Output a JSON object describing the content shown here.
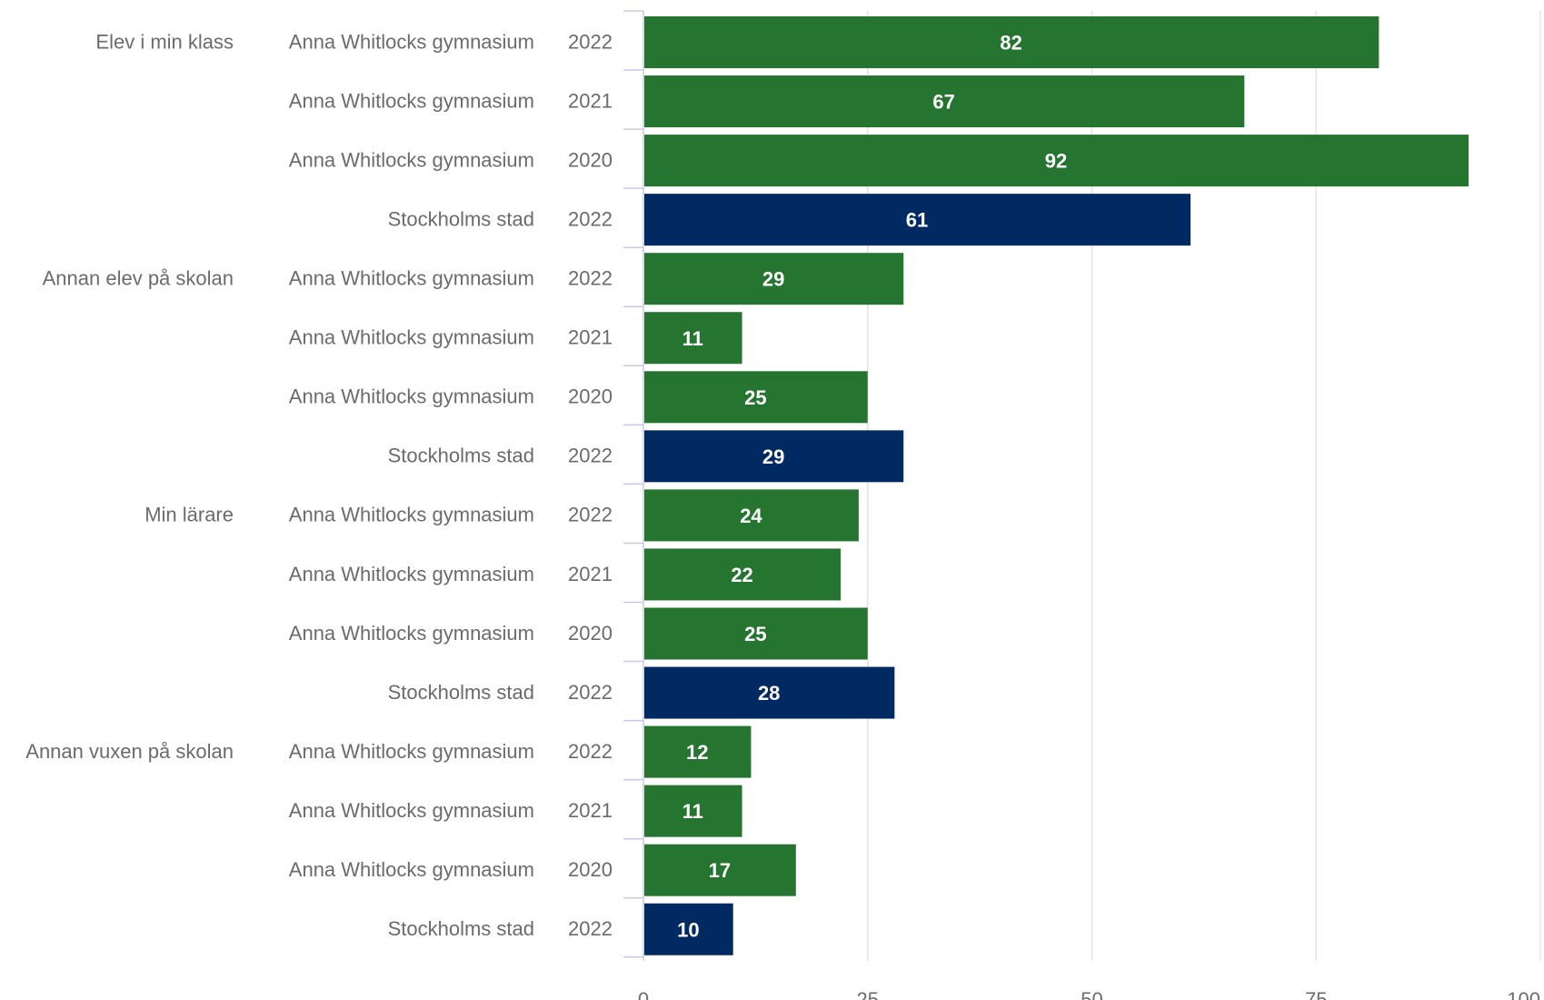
{
  "colors": {
    "school": "#25742f",
    "city": "#002a61"
  },
  "chart_data": {
    "type": "bar",
    "orientation": "horizontal",
    "xlim": [
      0,
      100
    ],
    "xticks": [
      0,
      25,
      50,
      75,
      100
    ],
    "grid": true,
    "title": "",
    "xlabel": "",
    "ylabel": "",
    "rows": [
      {
        "category": "Elev i min klass",
        "entity": "Anna Whitlocks gymnasium",
        "year": "2022",
        "value": 82,
        "kind": "school"
      },
      {
        "category": "",
        "entity": "Anna Whitlocks gymnasium",
        "year": "2021",
        "value": 67,
        "kind": "school"
      },
      {
        "category": "",
        "entity": "Anna Whitlocks gymnasium",
        "year": "2020",
        "value": 92,
        "kind": "school"
      },
      {
        "category": "",
        "entity": "Stockholms stad",
        "year": "2022",
        "value": 61,
        "kind": "city"
      },
      {
        "category": "Annan elev på skolan",
        "entity": "Anna Whitlocks gymnasium",
        "year": "2022",
        "value": 29,
        "kind": "school"
      },
      {
        "category": "",
        "entity": "Anna Whitlocks gymnasium",
        "year": "2021",
        "value": 11,
        "kind": "school"
      },
      {
        "category": "",
        "entity": "Anna Whitlocks gymnasium",
        "year": "2020",
        "value": 25,
        "kind": "school"
      },
      {
        "category": "",
        "entity": "Stockholms stad",
        "year": "2022",
        "value": 29,
        "kind": "city"
      },
      {
        "category": "Min lärare",
        "entity": "Anna Whitlocks gymnasium",
        "year": "2022",
        "value": 24,
        "kind": "school"
      },
      {
        "category": "",
        "entity": "Anna Whitlocks gymnasium",
        "year": "2021",
        "value": 22,
        "kind": "school"
      },
      {
        "category": "",
        "entity": "Anna Whitlocks gymnasium",
        "year": "2020",
        "value": 25,
        "kind": "school"
      },
      {
        "category": "",
        "entity": "Stockholms stad",
        "year": "2022",
        "value": 28,
        "kind": "city"
      },
      {
        "category": "Annan vuxen på skolan",
        "entity": "Anna Whitlocks gymnasium",
        "year": "2022",
        "value": 12,
        "kind": "school"
      },
      {
        "category": "",
        "entity": "Anna Whitlocks gymnasium",
        "year": "2021",
        "value": 11,
        "kind": "school"
      },
      {
        "category": "",
        "entity": "Anna Whitlocks gymnasium",
        "year": "2020",
        "value": 17,
        "kind": "school"
      },
      {
        "category": "",
        "entity": "Stockholms stad",
        "year": "2022",
        "value": 10,
        "kind": "city"
      }
    ]
  }
}
